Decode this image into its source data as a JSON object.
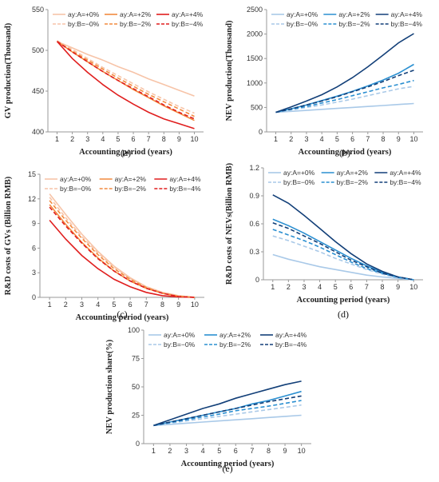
{
  "colors": {
    "red_light": "#f7c4a8",
    "red_mid": "#f28a3e",
    "red_dark": "#e01e1e",
    "blue_light": "#a9c9e8",
    "blue_mid": "#2a8fd1",
    "blue_dark": "#123f78",
    "red_axis": "#e01e1e",
    "blue_axis": "#1f4e8c"
  },
  "chart_data": [
    {
      "panel": "(a)",
      "type": "line",
      "xlabel": "Accounting period (years)",
      "ylabel": "GV production(Thousand)",
      "ylim": [
        400,
        550
      ],
      "yticks": [
        "400",
        "450",
        "500",
        "550"
      ],
      "x": [
        1,
        2,
        3,
        4,
        5,
        6,
        7,
        8,
        9,
        10
      ],
      "xticks": [
        "1",
        "2",
        "3",
        "4",
        "5",
        "6",
        "7",
        "8",
        "9",
        "10"
      ],
      "legend": "top",
      "series": [
        {
          "name": "ay:A=+0%",
          "color": "red_light",
          "dash": false,
          "values": [
            511,
            503,
            495,
            488,
            480,
            473,
            465,
            458,
            451,
            444
          ]
        },
        {
          "name": "ay:A=+2%",
          "color": "red_mid",
          "dash": false,
          "values": [
            511,
            498,
            486,
            474,
            463,
            452,
            442,
            432,
            423,
            414
          ]
        },
        {
          "name": "ay:A=+4%",
          "color": "red_dark",
          "dash": false,
          "values": [
            511,
            490,
            473,
            458,
            445,
            434,
            424,
            416,
            410,
            404
          ]
        },
        {
          "name": "by:B=−0%",
          "color": "red_light",
          "dash": true,
          "values": [
            512,
            501,
            490,
            479,
            469,
            459,
            449,
            440,
            431,
            423
          ]
        },
        {
          "name": "by:B=−2%",
          "color": "red_mid",
          "dash": true,
          "values": [
            511,
            499,
            488,
            477,
            466,
            456,
            446,
            437,
            428,
            419
          ]
        },
        {
          "name": "by:B=−4%",
          "color": "red_dark",
          "dash": true,
          "values": [
            511,
            498,
            486,
            474,
            463,
            453,
            443,
            433,
            424,
            416
          ]
        }
      ]
    },
    {
      "panel": "(b)",
      "type": "line",
      "xlabel": "Accounting period (years)",
      "ylabel": "NEV production(Thousand)",
      "ylim": [
        0,
        2500
      ],
      "yticks": [
        "0",
        "500",
        "1000",
        "1500",
        "2000",
        "2500"
      ],
      "x": [
        1,
        2,
        3,
        4,
        5,
        6,
        7,
        8,
        9,
        10
      ],
      "xticks": [
        "1",
        "2",
        "3",
        "4",
        "5",
        "6",
        "7",
        "8",
        "9",
        "10"
      ],
      "legend": "top",
      "series": [
        {
          "name": "ay:A=+0%",
          "color": "blue_light",
          "dash": false,
          "values": [
            400,
            420,
            440,
            460,
            480,
            500,
            520,
            540,
            560,
            580
          ]
        },
        {
          "name": "ay:A=+2%",
          "color": "blue_mid",
          "dash": false,
          "values": [
            400,
            470,
            550,
            640,
            730,
            830,
            940,
            1060,
            1200,
            1380
          ]
        },
        {
          "name": "ay:A=+4%",
          "color": "blue_dark",
          "dash": false,
          "values": [
            400,
            510,
            630,
            760,
            920,
            1110,
            1330,
            1570,
            1820,
            2010
          ]
        },
        {
          "name": "by:B=−0%",
          "color": "blue_light",
          "dash": true,
          "values": [
            400,
            450,
            500,
            550,
            610,
            670,
            740,
            810,
            880,
            930
          ]
        },
        {
          "name": "by:B=−2%",
          "color": "blue_mid",
          "dash": true,
          "values": [
            400,
            460,
            520,
            590,
            660,
            740,
            820,
            900,
            970,
            1050
          ]
        },
        {
          "name": "by:B=−4%",
          "color": "blue_dark",
          "dash": true,
          "values": [
            400,
            470,
            550,
            630,
            720,
            820,
            920,
            1030,
            1150,
            1260
          ]
        }
      ]
    },
    {
      "panel": "(c)",
      "type": "line",
      "xlabel": "Accounting period (years)",
      "ylabel": "R&D costs of GVs (Billion RMB)",
      "ylim": [
        0,
        15
      ],
      "yticks": [
        "0",
        "3",
        "6",
        "9",
        "12",
        "15"
      ],
      "x": [
        1,
        2,
        3,
        4,
        5,
        6,
        7,
        8,
        9,
        10
      ],
      "xticks": [
        "1",
        "2",
        "3",
        "4",
        "5",
        "6",
        "7",
        "8",
        "9",
        "10"
      ],
      "legend": "top",
      "series": [
        {
          "name": "ay:A=+0%",
          "color": "red_light",
          "dash": false,
          "values": [
            12.6,
            10.1,
            7.7,
            5.6,
            3.8,
            2.4,
            1.3,
            0.6,
            0.2,
            0.0
          ]
        },
        {
          "name": "ay:A=+2%",
          "color": "red_mid",
          "dash": false,
          "values": [
            11.3,
            8.9,
            6.7,
            4.8,
            3.2,
            2.0,
            1.1,
            0.5,
            0.1,
            0.0
          ]
        },
        {
          "name": "ay:A=+4%",
          "color": "red_dark",
          "dash": false,
          "values": [
            9.4,
            7.1,
            5.1,
            3.5,
            2.2,
            1.3,
            0.6,
            0.2,
            0.05,
            0.0
          ]
        },
        {
          "name": "by:B=−0%",
          "color": "red_light",
          "dash": true,
          "values": [
            12.2,
            9.7,
            7.4,
            5.4,
            3.7,
            2.3,
            1.3,
            0.6,
            0.2,
            0.0
          ]
        },
        {
          "name": "by:B=−2%",
          "color": "red_mid",
          "dash": true,
          "values": [
            11.8,
            9.4,
            7.2,
            5.2,
            3.5,
            2.2,
            1.2,
            0.5,
            0.15,
            0.0
          ]
        },
        {
          "name": "by:B=−4%",
          "color": "red_dark",
          "dash": true,
          "values": [
            11.0,
            8.7,
            6.6,
            4.7,
            3.2,
            2.0,
            1.1,
            0.5,
            0.1,
            0.0
          ]
        }
      ]
    },
    {
      "panel": "(d)",
      "type": "line",
      "xlabel": "Accounting period (years)",
      "ylabel": "R&D costs of NEVs(Billion RMB)",
      "ylim": [
        0,
        1.2
      ],
      "yticks": [
        "0",
        "0.3",
        "0.6",
        "0.9",
        "1.2"
      ],
      "x": [
        1,
        2,
        3,
        4,
        5,
        6,
        7,
        8,
        9,
        10
      ],
      "xticks": [
        "1",
        "2",
        "3",
        "4",
        "5",
        "6",
        "7",
        "8",
        "9",
        "10"
      ],
      "legend": "top",
      "series": [
        {
          "name": "ay:A=+0%",
          "color": "blue_light",
          "dash": false,
          "values": [
            0.27,
            0.22,
            0.18,
            0.14,
            0.11,
            0.08,
            0.05,
            0.03,
            0.015,
            0.0
          ]
        },
        {
          "name": "ay:A=+2%",
          "color": "blue_mid",
          "dash": false,
          "values": [
            0.65,
            0.58,
            0.5,
            0.41,
            0.32,
            0.23,
            0.15,
            0.08,
            0.03,
            0.0
          ]
        },
        {
          "name": "ay:A=+4%",
          "color": "blue_dark",
          "dash": false,
          "values": [
            0.91,
            0.82,
            0.69,
            0.55,
            0.41,
            0.28,
            0.17,
            0.09,
            0.03,
            0.0
          ]
        },
        {
          "name": "by:B=−0%",
          "color": "blue_light",
          "dash": true,
          "values": [
            0.47,
            0.42,
            0.36,
            0.3,
            0.23,
            0.17,
            0.11,
            0.06,
            0.02,
            0.0
          ]
        },
        {
          "name": "by:B=−2%",
          "color": "blue_mid",
          "dash": true,
          "values": [
            0.54,
            0.48,
            0.42,
            0.35,
            0.27,
            0.19,
            0.12,
            0.07,
            0.025,
            0.0
          ]
        },
        {
          "name": "by:B=−4%",
          "color": "blue_dark",
          "dash": true,
          "values": [
            0.61,
            0.55,
            0.47,
            0.39,
            0.3,
            0.21,
            0.14,
            0.07,
            0.03,
            0.0
          ]
        }
      ]
    },
    {
      "panel": "(e)",
      "type": "line",
      "xlabel": "Accounting period (years)",
      "ylabel": "NEV production share(%)",
      "ylim": [
        0,
        100
      ],
      "yticks": [
        "0",
        "25",
        "50",
        "75",
        "100"
      ],
      "x": [
        1,
        2,
        3,
        4,
        5,
        6,
        7,
        8,
        9,
        10
      ],
      "xticks": [
        "1",
        "2",
        "3",
        "4",
        "5",
        "6",
        "7",
        "8",
        "9",
        "10"
      ],
      "legend": "top",
      "series": [
        {
          "name": "ay:A=+0%",
          "color": "blue_light",
          "dash": false,
          "values": [
            16,
            17,
            18,
            19,
            20,
            21,
            22,
            23,
            24,
            25
          ]
        },
        {
          "name": "ay:A=+2%",
          "color": "blue_mid",
          "dash": false,
          "values": [
            16,
            19,
            22,
            25,
            28,
            31,
            35,
            38,
            42,
            46
          ]
        },
        {
          "name": "ay:A=+4%",
          "color": "blue_dark",
          "dash": false,
          "values": [
            16,
            21,
            26,
            31,
            35,
            40,
            44,
            48,
            52,
            55
          ]
        },
        {
          "name": "by:B=−0%",
          "color": "blue_light",
          "dash": true,
          "values": [
            16,
            18,
            20,
            22,
            24,
            26,
            28,
            30,
            32,
            34
          ]
        },
        {
          "name": "by:B=−2%",
          "color": "blue_mid",
          "dash": true,
          "values": [
            16,
            18.5,
            21,
            23.5,
            26,
            29,
            31,
            33,
            35.5,
            38
          ]
        },
        {
          "name": "by:B=−4%",
          "color": "blue_dark",
          "dash": true,
          "values": [
            16,
            19,
            22,
            25,
            28,
            31,
            34,
            37,
            39.5,
            42
          ]
        }
      ]
    }
  ]
}
